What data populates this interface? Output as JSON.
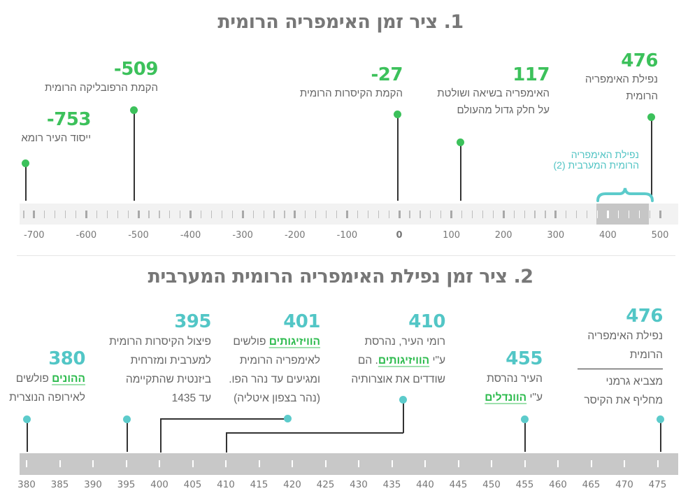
{
  "timeline1": {
    "title": "1. ציר זמן האימפריה הרומית",
    "events": [
      {
        "year": "-753",
        "value": -753,
        "desc": [
          "ייסוד העיר רומא"
        ]
      },
      {
        "year": "-509",
        "value": -509,
        "desc": [
          "הקמת הרפובליקה הרומית"
        ]
      },
      {
        "year": "-27",
        "value": -27,
        "desc": [
          "הקמת הקיסרות הרומית"
        ]
      },
      {
        "year": "117",
        "value": 117,
        "desc": [
          "האימפריה בשיאה ושולטת",
          "על חלק גדול מהעולם"
        ]
      },
      {
        "year": "476",
        "value": 476,
        "desc": [
          "נפילת האימפריה",
          "הרומית"
        ]
      }
    ],
    "highlight_note": [
      "נפילת האימפריה",
      "הרומית המערבית (2)"
    ],
    "highlight_range": [
      380,
      476
    ],
    "axis_labels": [
      "-700",
      "-600",
      "-500",
      "-400",
      "-300",
      "-200",
      "-100",
      "0",
      "100",
      "200",
      "300",
      "400",
      "500"
    ],
    "colors": {
      "accent": "#3cc15b",
      "bracket": "#5ccbcb",
      "bar": "#f2f2f2",
      "bar_highlight": "#c6c6c6"
    }
  },
  "timeline2": {
    "title": "2. ציר זמן נפילת האימפריה הרומית המערבית",
    "events": [
      {
        "year": "380",
        "value": 380,
        "desc": [
          [
            {
              "t": "ההונים",
              "hl": true
            },
            {
              "t": " פולשים"
            }
          ],
          [
            {
              "t": "לאירופה הנוצרית"
            }
          ]
        ]
      },
      {
        "year": "395",
        "value": 395,
        "desc": [
          [
            {
              "t": "פיצול הקיסרות הרומית"
            }
          ],
          [
            {
              "t": "למערבית ומזרחית"
            }
          ],
          [
            {
              "t": "ביזנטית שהתקיימה"
            }
          ],
          [
            {
              "t": "עד 1435"
            }
          ]
        ]
      },
      {
        "year": "401",
        "value": 401,
        "desc": [
          [
            {
              "t": "הוויזיגותים",
              "hl": true
            },
            {
              "t": " פולשים"
            }
          ],
          [
            {
              "t": "לאימפריה הרומית"
            }
          ],
          [
            {
              "t": "ומגיעים עד נהר הפו."
            }
          ],
          [
            {
              "t": "(נהר בצפון איטליה)"
            }
          ]
        ]
      },
      {
        "year": "410",
        "value": 410,
        "desc": [
          [
            {
              "t": "רומי העיר, נהרסת"
            }
          ],
          [
            {
              "t": "ע\"י "
            },
            {
              "t": "הוויזיגותים",
              "hl": true
            },
            {
              "t": ". הם"
            }
          ],
          [
            {
              "t": "שודדים את אוצרותיה"
            }
          ]
        ]
      },
      {
        "year": "455",
        "value": 455,
        "desc": [
          [
            {
              "t": "העיר נהרסת"
            }
          ],
          [
            {
              "t": "ע\"י "
            },
            {
              "t": "הוונדלים",
              "hl": true
            }
          ]
        ]
      },
      {
        "year": "476",
        "value": 476,
        "desc": [
          [
            {
              "t": "נפילת האימפריה"
            }
          ],
          [
            {
              "t": "הרומית"
            }
          ]
        ],
        "desc2": [
          [
            {
              "t": "מצביא גרמני"
            }
          ],
          [
            {
              "t": "מחליף את הקיסר"
            }
          ]
        ]
      }
    ],
    "axis_labels": [
      "380",
      "385",
      "390",
      "395",
      "400",
      "405",
      "410",
      "415",
      "420",
      "425",
      "430",
      "435",
      "440",
      "445",
      "450",
      "455",
      "460",
      "465",
      "470",
      "475"
    ],
    "colors": {
      "accent": "#52c6c6",
      "bar": "#c8c8c8",
      "link": "#2dbb4e"
    }
  }
}
